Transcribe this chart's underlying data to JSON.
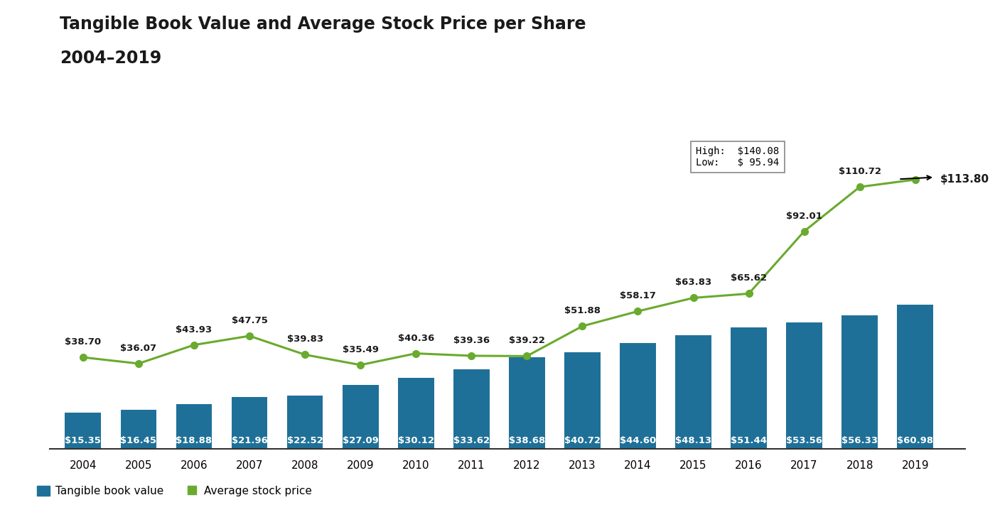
{
  "years": [
    2004,
    2005,
    2006,
    2007,
    2008,
    2009,
    2010,
    2011,
    2012,
    2013,
    2014,
    2015,
    2016,
    2017,
    2018,
    2019
  ],
  "bar_values": [
    15.35,
    16.45,
    18.88,
    21.96,
    22.52,
    27.09,
    30.12,
    33.62,
    38.68,
    40.72,
    44.6,
    48.13,
    51.44,
    53.56,
    56.33,
    60.98
  ],
  "line_values": [
    38.7,
    36.07,
    43.93,
    47.75,
    39.83,
    35.49,
    40.36,
    39.36,
    39.22,
    51.88,
    58.17,
    63.83,
    65.62,
    92.01,
    110.72,
    113.8
  ],
  "bar_color": "#1f7098",
  "line_color": "#6aaa2e",
  "bar_label_color": "#ffffff",
  "line_label_color": "#1a1a1a",
  "title_line1": "Tangible Book Value and Average Stock Price per Share",
  "title_line2": "2004–2019",
  "legend_bar_label": "Tangible book value",
  "legend_line_label": "Average stock price",
  "annotation_high": "High:  $140.08",
  "annotation_low": "Low:   $ 95.94",
  "background_color": "#ffffff",
  "ylim": [
    0,
    150
  ],
  "bar_label_fontsize": 9.5,
  "line_label_fontsize": 9.5,
  "title_fontsize": 17,
  "axis_label_fontsize": 11
}
